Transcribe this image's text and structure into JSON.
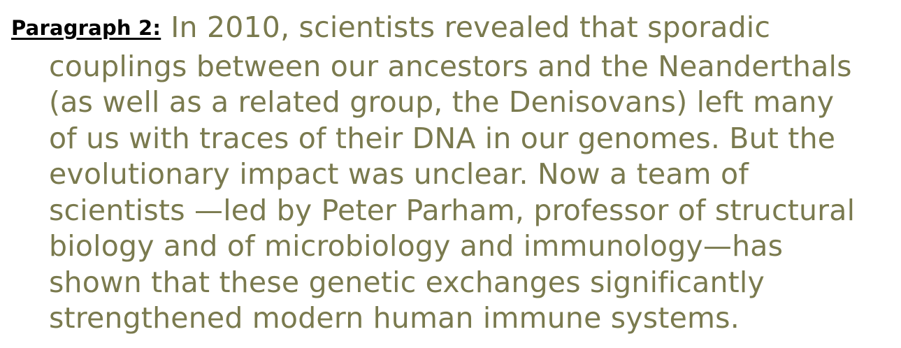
{
  "paragraph": {
    "label": "Paragraph 2:",
    "lines": [
      "In 2010, scientists revealed that sporadic",
      "couplings between our ancestors and the Neanderthals",
      "(as well as a related group, the Denisovans) left many",
      "of us with traces of their DNA in our genomes. But the",
      "evolutionary impact was unclear. Now a team of",
      "scientists —led by Peter Parham, professor of structural",
      "biology and of microbiology and immunology—has",
      "shown that these genetic exchanges significantly",
      "strengthened modern human immune systems."
    ]
  },
  "colors": {
    "body_text": "#7a7a4e",
    "label_text": "#000000",
    "background": "#ffffff"
  }
}
